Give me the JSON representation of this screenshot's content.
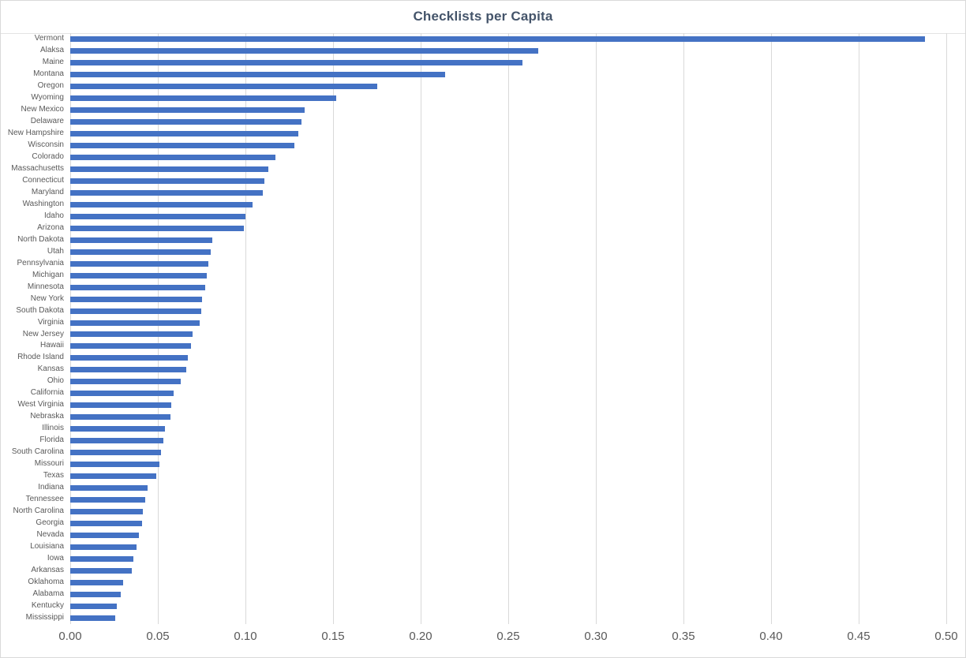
{
  "chart_data": {
    "type": "bar",
    "orientation": "horizontal",
    "title": "Checklists per Capita",
    "xlabel": "",
    "ylabel": "",
    "xlim": [
      0,
      0.5
    ],
    "grid": true,
    "legend": false,
    "bar_color": "#4472C4",
    "title_color": "#44546A",
    "axis_label_color": "#595959",
    "gridline_color": "#D9D9D9",
    "x_ticks": [
      "0.00",
      "0.05",
      "0.10",
      "0.15",
      "0.20",
      "0.25",
      "0.30",
      "0.35",
      "0.40",
      "0.45",
      "0.50"
    ],
    "x_tick_values": [
      0,
      0.05,
      0.1,
      0.15,
      0.2,
      0.25,
      0.3,
      0.35,
      0.4,
      0.45,
      0.5
    ],
    "categories": [
      "Vermont",
      "Alaksa",
      "Maine",
      "Montana",
      "Oregon",
      "Wyoming",
      "New Mexico",
      "Delaware",
      "New Hampshire",
      "Wisconsin",
      "Colorado",
      "Massachusetts",
      "Connecticut",
      "Maryland",
      "Washington",
      "Idaho",
      "Arizona",
      "North Dakota",
      "Utah",
      "Pennsylvania",
      "Michigan",
      "Minnesota",
      "New York",
      "South Dakota",
      "Virginia",
      "New Jersey",
      "Hawaii",
      "Rhode Island",
      "Kansas",
      "Ohio",
      "California",
      "West Virginia",
      "Nebraska",
      "Illinois",
      "Florida",
      "South Carolina",
      "Missouri",
      "Texas",
      "Indiana",
      "Tennessee",
      "North Carolina",
      "Georgia",
      "Nevada",
      "Louisiana",
      "Iowa",
      "Arkansas",
      "Oklahoma",
      "Alabama",
      "Kentucky",
      "Mississippi"
    ],
    "values": [
      0.488,
      0.267,
      0.258,
      0.214,
      0.175,
      0.152,
      0.134,
      0.132,
      0.13,
      0.128,
      0.117,
      0.113,
      0.111,
      0.11,
      0.104,
      0.1,
      0.099,
      0.081,
      0.08,
      0.079,
      0.078,
      0.077,
      0.0752,
      0.0748,
      0.074,
      0.07,
      0.069,
      0.067,
      0.066,
      0.063,
      0.059,
      0.0576,
      0.057,
      0.054,
      0.053,
      0.052,
      0.051,
      0.049,
      0.044,
      0.0427,
      0.0415,
      0.041,
      0.039,
      0.038,
      0.036,
      0.035,
      0.03,
      0.029,
      0.0265,
      0.0258
    ]
  }
}
